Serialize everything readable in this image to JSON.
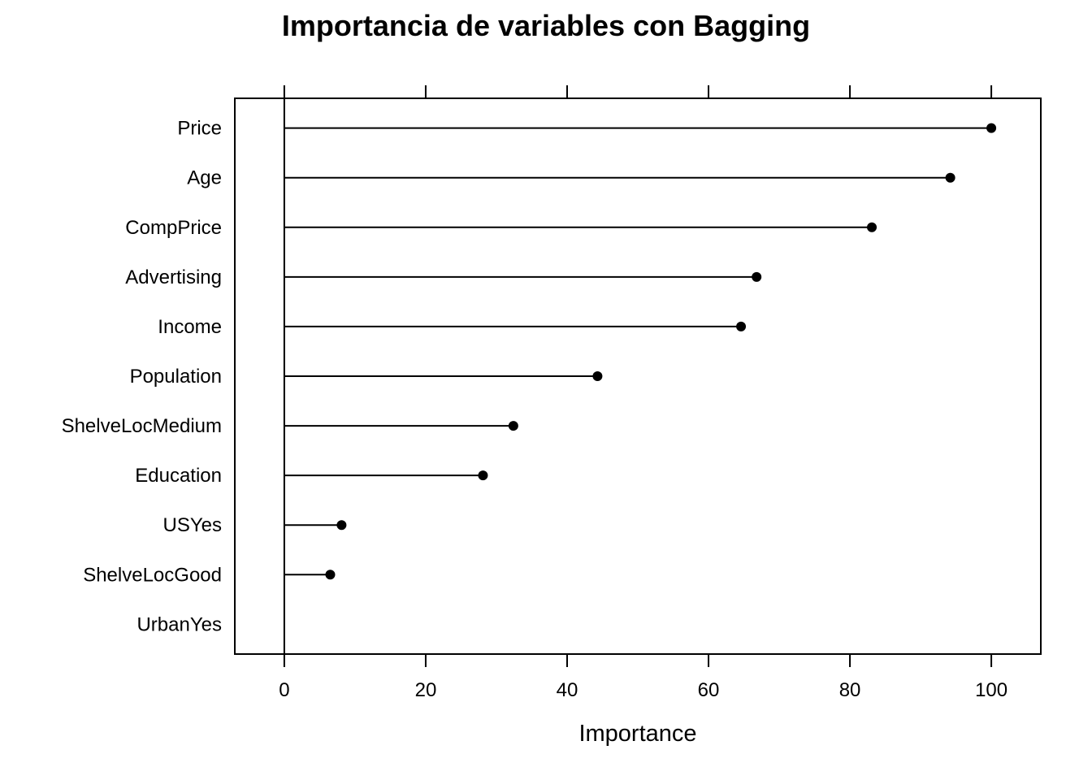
{
  "chart_data": {
    "type": "dotplot",
    "title": "Importancia de variables con Bagging",
    "xlabel": "Importance",
    "ylabel": "",
    "xlim": [
      -7,
      107
    ],
    "xticks": [
      0,
      20,
      40,
      60,
      80,
      100
    ],
    "categories": [
      "Price",
      "Age",
      "CompPrice",
      "Advertising",
      "Income",
      "Population",
      "ShelveLocMedium",
      "Education",
      "USYes",
      "ShelveLocGood",
      "UrbanYes"
    ],
    "values": [
      100,
      94.2,
      83.1,
      66.8,
      64.6,
      44.3,
      32.4,
      28.1,
      8.1,
      6.5,
      0
    ],
    "grid": false,
    "legend": "none"
  }
}
